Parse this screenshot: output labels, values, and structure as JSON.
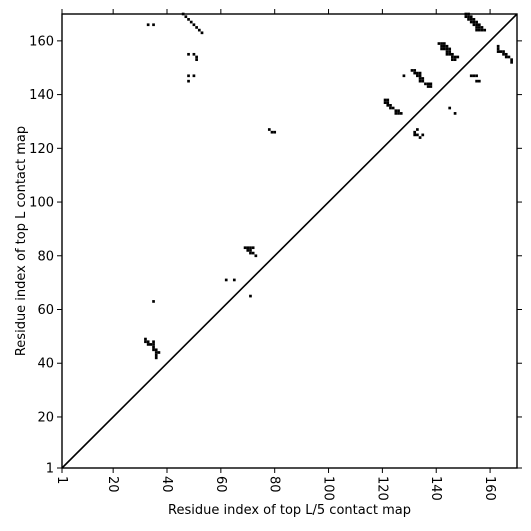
{
  "chart_data": {
    "type": "heatmap",
    "xlabel": "Residue index of top L/5 contact map",
    "ylabel": "Residue index of top L contact map",
    "xlim": [
      1,
      170
    ],
    "ylim": [
      1,
      170
    ],
    "xticks": [
      1,
      20,
      40,
      60,
      80,
      100,
      120,
      140,
      160
    ],
    "yticks": [
      1,
      20,
      40,
      60,
      80,
      100,
      120,
      140,
      160
    ],
    "diagonal": true,
    "colors": {
      "contact": "#000000",
      "background": "#ffffff",
      "line": "#000000"
    },
    "contacts": [
      [
        33,
        166
      ],
      [
        35,
        166
      ],
      [
        46,
        170
      ],
      [
        47,
        169
      ],
      [
        48,
        168
      ],
      [
        49,
        167
      ],
      [
        50,
        166
      ],
      [
        51,
        165
      ],
      [
        52,
        164
      ],
      [
        53,
        163
      ],
      [
        48,
        155
      ],
      [
        50,
        155
      ],
      [
        51,
        154
      ],
      [
        51,
        153
      ],
      [
        48,
        147
      ],
      [
        50,
        147
      ],
      [
        48,
        145
      ],
      [
        32,
        49
      ],
      [
        32,
        48
      ],
      [
        33,
        48
      ],
      [
        33,
        47
      ],
      [
        34,
        47
      ],
      [
        35,
        48
      ],
      [
        35,
        47
      ],
      [
        35,
        46
      ],
      [
        35,
        45
      ],
      [
        36,
        45
      ],
      [
        36,
        44
      ],
      [
        37,
        44
      ],
      [
        36,
        43
      ],
      [
        36,
        42
      ],
      [
        35,
        63
      ],
      [
        69,
        83
      ],
      [
        70,
        83
      ],
      [
        71,
        83
      ],
      [
        72,
        83
      ],
      [
        70,
        82
      ],
      [
        71,
        82
      ],
      [
        71,
        81
      ],
      [
        72,
        81
      ],
      [
        73,
        80
      ],
      [
        62,
        71
      ],
      [
        65,
        71
      ],
      [
        71,
        65
      ],
      [
        78,
        127
      ],
      [
        79,
        126
      ],
      [
        80,
        126
      ],
      [
        121,
        138
      ],
      [
        121,
        137
      ],
      [
        122,
        138
      ],
      [
        122,
        137
      ],
      [
        123,
        136
      ],
      [
        122,
        136
      ],
      [
        123,
        135
      ],
      [
        124,
        135
      ],
      [
        125,
        134
      ],
      [
        125,
        133
      ],
      [
        126,
        133
      ],
      [
        127,
        133
      ],
      [
        126,
        134
      ],
      [
        128,
        147
      ],
      [
        131,
        149
      ],
      [
        132,
        149
      ],
      [
        132,
        148
      ],
      [
        133,
        148
      ],
      [
        134,
        148
      ],
      [
        133,
        147
      ],
      [
        134,
        147
      ],
      [
        134,
        146
      ],
      [
        135,
        146
      ],
      [
        134,
        145
      ],
      [
        135,
        145
      ],
      [
        136,
        144
      ],
      [
        137,
        144
      ],
      [
        137,
        143
      ],
      [
        138,
        143
      ],
      [
        138,
        144
      ],
      [
        132,
        126
      ],
      [
        133,
        127
      ],
      [
        132,
        125
      ],
      [
        133,
        125
      ],
      [
        134,
        124
      ],
      [
        135,
        125
      ],
      [
        141,
        159
      ],
      [
        142,
        159
      ],
      [
        143,
        159
      ],
      [
        142,
        158
      ],
      [
        143,
        158
      ],
      [
        144,
        158
      ],
      [
        142,
        157
      ],
      [
        143,
        157
      ],
      [
        144,
        157
      ],
      [
        145,
        157
      ],
      [
        144,
        156
      ],
      [
        145,
        156
      ],
      [
        144,
        155
      ],
      [
        145,
        155
      ],
      [
        146,
        155
      ],
      [
        146,
        154
      ],
      [
        147,
        154
      ],
      [
        148,
        154
      ],
      [
        146,
        153
      ],
      [
        147,
        153
      ],
      [
        145,
        135
      ],
      [
        147,
        133
      ],
      [
        151,
        170
      ],
      [
        152,
        170
      ],
      [
        151,
        169
      ],
      [
        152,
        169
      ],
      [
        153,
        169
      ],
      [
        152,
        168
      ],
      [
        153,
        168
      ],
      [
        154,
        168
      ],
      [
        153,
        167
      ],
      [
        154,
        167
      ],
      [
        155,
        167
      ],
      [
        154,
        166
      ],
      [
        155,
        166
      ],
      [
        156,
        166
      ],
      [
        155,
        165
      ],
      [
        156,
        165
      ],
      [
        157,
        165
      ],
      [
        155,
        164
      ],
      [
        156,
        164
      ],
      [
        157,
        164
      ],
      [
        158,
        164
      ],
      [
        153,
        147
      ],
      [
        154,
        147
      ],
      [
        155,
        147
      ],
      [
        155,
        145
      ],
      [
        156,
        145
      ],
      [
        163,
        158
      ],
      [
        163,
        157
      ],
      [
        163,
        156
      ],
      [
        164,
        156
      ],
      [
        165,
        156
      ],
      [
        165,
        155
      ],
      [
        166,
        155
      ],
      [
        166,
        154
      ],
      [
        167,
        154
      ],
      [
        168,
        153
      ],
      [
        168,
        152
      ]
    ]
  }
}
